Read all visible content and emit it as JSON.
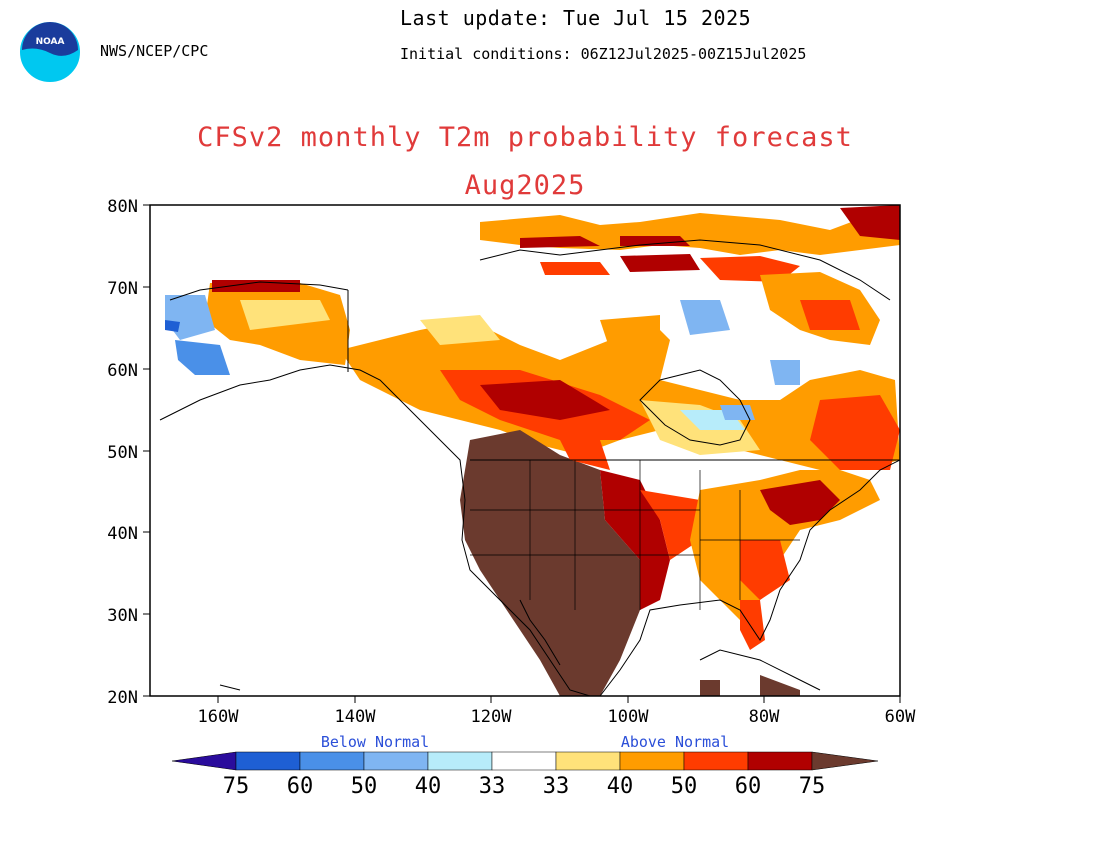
{
  "header": {
    "agency": "NWS/NCEP/CPC",
    "last_update": "Last update: Tue Jul 15 2025",
    "initial_conditions": "Initial conditions: 06Z12Jul2025-00Z15Jul2025"
  },
  "logo": {
    "text": "NOAA",
    "color_outer": "#00c8f0",
    "color_inner": "#1a3c9c"
  },
  "title": "CFSv2 monthly T2m probability forecast",
  "subtitle": "Aug2025",
  "map": {
    "lat_labels": [
      "80N",
      "70N",
      "60N",
      "50N",
      "40N",
      "30N",
      "20N"
    ],
    "lon_labels": [
      "160W",
      "140W",
      "120W",
      "100W",
      "80W",
      "60W"
    ],
    "lat_range": [
      20,
      80
    ],
    "lon_range": [
      -170,
      -60
    ]
  },
  "legend": {
    "below_caption": "Below Normal",
    "above_caption": "Above Normal",
    "labels": [
      "75",
      "60",
      "50",
      "40",
      "33",
      "33",
      "40",
      "50",
      "60",
      "75"
    ],
    "colors": {
      "b75": "#2a0c9c",
      "b60": "#1e5fd4",
      "b50": "#4a90e8",
      "b40": "#7fb5f2",
      "b33": "#b7ecfa",
      "normal": "#ffffff",
      "a33": "#ffe27a",
      "a40": "#ff9c00",
      "a50": "#ff3c00",
      "a60": "#b00000",
      "a75": "#6b3a2e"
    }
  }
}
